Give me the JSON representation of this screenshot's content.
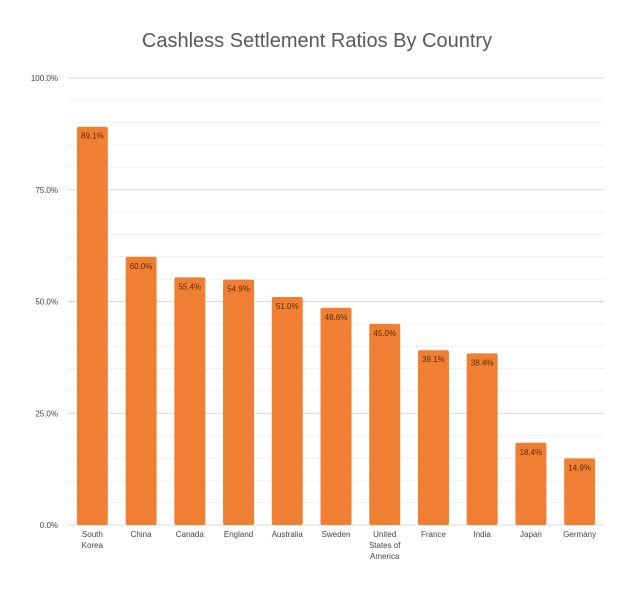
{
  "chart_data": {
    "type": "bar",
    "title": "Cashless Settlement Ratios By Country",
    "categories": [
      [
        "South",
        "Korea"
      ],
      [
        "China"
      ],
      [
        "Canada"
      ],
      [
        "England"
      ],
      [
        "Australia"
      ],
      [
        "Sweden"
      ],
      [
        "United",
        "States of",
        "America"
      ],
      [
        "France"
      ],
      [
        "India"
      ],
      [
        "Japan"
      ],
      [
        "Germany"
      ]
    ],
    "values": [
      89.1,
      60.0,
      55.4,
      54.9,
      51.0,
      48.6,
      45.0,
      39.1,
      38.4,
      18.4,
      14.9
    ],
    "data_labels": [
      "89.1%",
      "60.0%",
      "55.4%",
      "54.9%",
      "51.0%",
      "48.6%",
      "45.0%",
      "39.1%",
      "38.4%",
      "18.4%",
      "14.9%"
    ],
    "ylim": [
      0,
      100
    ],
    "yticks": [
      0,
      25,
      50,
      75,
      100
    ],
    "ytick_labels": [
      "0.0%",
      "25.0%",
      "50.0%",
      "75.0%",
      "100.0%"
    ],
    "grid": true,
    "legend": "none",
    "bar_color": "#ef7f32",
    "grid_color": "#d9d9d9"
  }
}
